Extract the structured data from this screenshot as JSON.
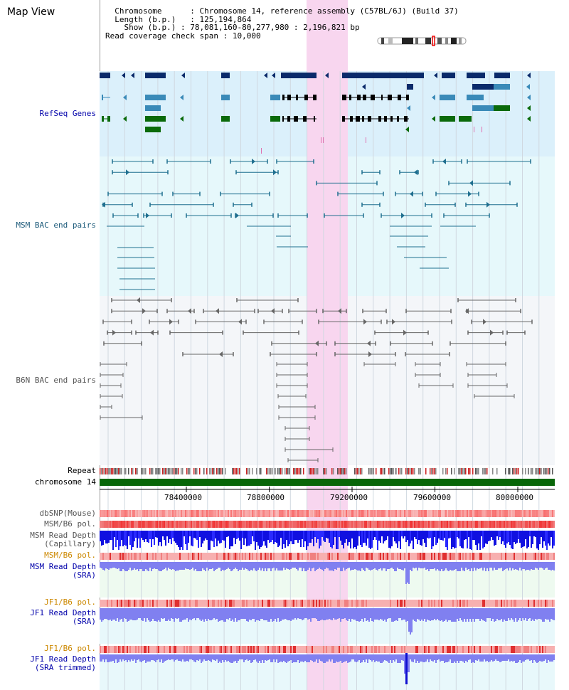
{
  "page": {
    "title": "Map View"
  },
  "info": {
    "chromosome_label": "Chromosome",
    "chromosome_value": "Chromosome 14, reference assembly (C57BL/6J) (Build 37)",
    "length_label": "Length (b.p.)",
    "length_value": "125,194,864",
    "show_label": "Show (b.p.)",
    "show_value": "78,081,160-80,277,980 : 2,196,821 bp",
    "span_label": "Read coverage check span",
    "span_value": "10,000"
  },
  "tracks": {
    "refseq": "RefSeq Genes",
    "msm_bac": "MSM BAC end pairs",
    "b6n_bac": "B6N BAC end pairs",
    "repeat": "Repeat",
    "chromosome": "chromosome 14",
    "dbsnp": "dbSNP(Mouse)",
    "msm_b6_pol": "MSM/B6 pol.",
    "msm_read_depth_cap_1": "MSM Read Depth",
    "msm_read_depth_cap_2": "(Capillary)",
    "msm_b6_pol_2": "MSM/B6 pol.",
    "msm_read_depth_sra_1": "MSM Read Depth",
    "msm_read_depth_sra_2": "(SRA)",
    "jf1_b6_pol": "JF1/B6 pol.",
    "jf1_read_depth_sra_1": "JF1 Read Depth",
    "jf1_read_depth_sra_2": "(SRA)",
    "jf1_b6_pol_2": "JF1/B6 pol.",
    "jf1_read_depth_trim_1": "JF1 Read Depth",
    "jf1_read_depth_trim_2": "(SRA trimmed)"
  },
  "axis": {
    "ticks": [
      "78400000",
      "78800000",
      "79200000",
      "79600000",
      "80000000"
    ]
  },
  "colors": {
    "refseq_bg": "#dbf0fb",
    "msm_bac_bg": "#e6f8fb",
    "b6n_bg": "#f4f6f9",
    "highlight": "#f8d6ef",
    "refseq_label": "#0000aa",
    "msm_label": "#1c5a7a",
    "b6n_label": "#555555",
    "orange_label": "#cc8800",
    "blue_label": "#0000aa",
    "gene_dark": "#0a2a6a",
    "gene_mid": "#3a8ab8",
    "gene_green": "#0a6a0a",
    "chromosome_bar": "#086608"
  }
}
